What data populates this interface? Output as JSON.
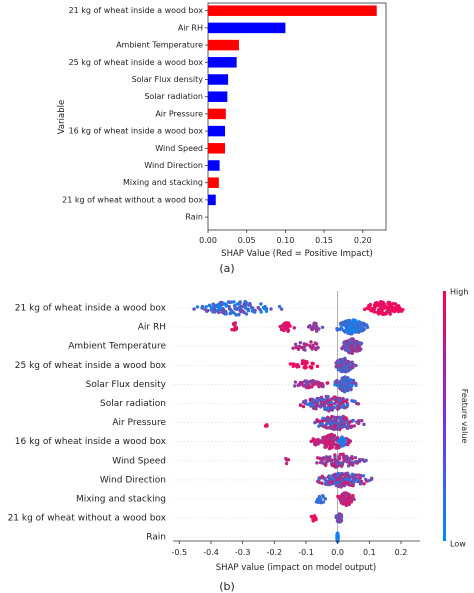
{
  "chart_data": [
    {
      "type": "bar",
      "orientation": "horizontal",
      "panel_label": "(a)",
      "xlabel": "SHAP Value (Red = Positive Impact)",
      "ylabel": "Variable",
      "xlim": [
        0,
        0.23
      ],
      "x_ticks": [
        "0.00",
        "0.05",
        "0.10",
        "0.15",
        "0.20"
      ],
      "x_tick_values": [
        0,
        0.05,
        0.1,
        0.15,
        0.2
      ],
      "grid": false,
      "colors": {
        "positive": "#ff0000",
        "negative": "#0000ff"
      },
      "categories": [
        "21 kg of wheat inside a wood box",
        "Air RH",
        "Ambient Temperature",
        "25 kg of wheat inside a wood box",
        "Solar Flux density",
        "Solar radiation",
        "Air Pressure",
        "16 kg of wheat inside a wood box",
        "Wind Speed",
        "Wind Direction",
        "Mixing and stacking",
        "21 kg of wheat without a wood box",
        "Rain"
      ],
      "values": [
        0.218,
        0.1,
        0.04,
        0.037,
        0.026,
        0.025,
        0.023,
        0.022,
        0.022,
        0.015,
        0.014,
        0.01,
        0.0
      ],
      "positive_impact": [
        true,
        false,
        true,
        false,
        false,
        false,
        true,
        false,
        true,
        false,
        true,
        false,
        false
      ]
    },
    {
      "type": "scatter",
      "subtype": "beeswarm",
      "panel_label": "(b)",
      "xlabel": "SHAP value (impact on model output)",
      "xlim": [
        -0.52,
        0.26
      ],
      "x_ticks": [
        "-0.5",
        "-0.4",
        "-0.3",
        "-0.2",
        "-0.1",
        "0.0",
        "0.1",
        "0.2"
      ],
      "x_tick_values": [
        -0.5,
        -0.4,
        -0.3,
        -0.2,
        -0.1,
        0.0,
        0.1,
        0.2
      ],
      "colorbar": {
        "title": "Feature value",
        "high": "High",
        "low": "Low",
        "low_color": "#008bfb",
        "high_color": "#ff0052"
      },
      "categories": [
        "21 kg of wheat inside a wood box",
        "Air RH",
        "Ambient Temperature",
        "25 kg of wheat inside a wood box",
        "Solar Flux density",
        "Solar radiation",
        "Air Pressure",
        "16 kg of wheat inside a wood box",
        "Wind Speed",
        "Wind Direction",
        "Mixing and stacking",
        "21 kg of wheat without a wood box",
        "Rain"
      ],
      "groups": [
        {
          "parts": [
            [
              -0.48,
              -0.15,
              120,
              0.02,
              0.5
            ],
            [
              0.07,
              0.23,
              90,
              0.85,
              1.0
            ]
          ]
        },
        {
          "parts": [
            [
              -0.34,
              -0.31,
              12,
              0.8,
              0.9
            ],
            [
              -0.19,
              -0.13,
              30,
              0.75,
              0.95
            ],
            [
              -0.1,
              -0.04,
              20,
              0.4,
              0.7
            ],
            [
              -0.02,
              0.11,
              150,
              0.0,
              0.35
            ]
          ]
        },
        {
          "parts": [
            [
              -0.17,
              -0.02,
              25,
              0.5,
              0.8
            ],
            [
              0.0,
              0.09,
              120,
              0.25,
              0.75
            ]
          ]
        },
        {
          "parts": [
            [
              -0.17,
              -0.05,
              30,
              0.85,
              1.0
            ],
            [
              -0.02,
              0.06,
              100,
              0.2,
              0.6
            ]
          ]
        },
        {
          "parts": [
            [
              -0.16,
              -0.01,
              40,
              0.45,
              0.9
            ],
            [
              -0.02,
              0.07,
              110,
              0.05,
              0.5
            ]
          ]
        },
        {
          "parts": [
            [
              -0.14,
              0.08,
              140,
              0.1,
              0.9
            ]
          ]
        },
        {
          "parts": [
            [
              -0.24,
              -0.21,
              3,
              0.75,
              0.95
            ],
            [
              -0.1,
              0.1,
              130,
              0.1,
              0.9
            ]
          ]
        },
        {
          "parts": [
            [
              -0.1,
              0.07,
              120,
              0.55,
              0.95
            ],
            [
              0.0,
              0.03,
              30,
              0.0,
              0.2
            ]
          ]
        },
        {
          "parts": [
            [
              -0.17,
              -0.15,
              4,
              0.6,
              0.8
            ],
            [
              -0.09,
              0.1,
              110,
              0.3,
              0.8
            ]
          ]
        },
        {
          "parts": [
            [
              -0.09,
              0.13,
              140,
              0.1,
              0.9
            ]
          ]
        },
        {
          "parts": [
            [
              -0.08,
              -0.03,
              15,
              0.1,
              0.3
            ],
            [
              -0.01,
              0.06,
              80,
              0.55,
              0.95
            ]
          ]
        },
        {
          "parts": [
            [
              -0.09,
              -0.06,
              8,
              0.85,
              1.0
            ],
            [
              -0.01,
              0.02,
              60,
              0.2,
              0.6
            ]
          ]
        },
        {
          "parts": [
            [
              -0.003,
              0.003,
              40,
              0.02,
              0.1
            ]
          ]
        }
      ]
    }
  ]
}
